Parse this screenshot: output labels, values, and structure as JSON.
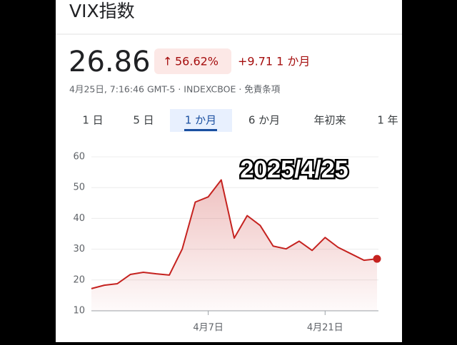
{
  "header": {
    "title": "VIX指数",
    "price": "26.86",
    "change_percent": "56.62%",
    "change_period": "+9.71 1 か月",
    "meta": "4月25日, 7:16:46 GMT-5 · INDEXCBOE · 免責条項"
  },
  "tabs": [
    "1 日",
    "5 日",
    "1 か月",
    "6 か月",
    "年初来",
    "1 年"
  ],
  "chart_data": {
    "type": "line",
    "annotation": "2025/4/25",
    "categories": [
      null,
      null,
      null,
      null,
      null,
      null,
      null,
      null,
      null,
      "4月7日",
      null,
      null,
      null,
      null,
      null,
      null,
      null,
      null,
      "4月21日",
      null,
      null,
      null,
      null
    ],
    "values": [
      17.2,
      18.3,
      18.8,
      21.8,
      22.5,
      22.0,
      21.6,
      30.1,
      45.3,
      47.0,
      52.5,
      33.6,
      40.9,
      37.7,
      31.0,
      30.1,
      32.6,
      29.6,
      33.8,
      30.6,
      28.5,
      26.4,
      26.86
    ],
    "color": "#c5221f",
    "ylim": [
      10,
      60
    ],
    "yticks": [
      10,
      20,
      30,
      40,
      50,
      60
    ],
    "grid": true
  }
}
